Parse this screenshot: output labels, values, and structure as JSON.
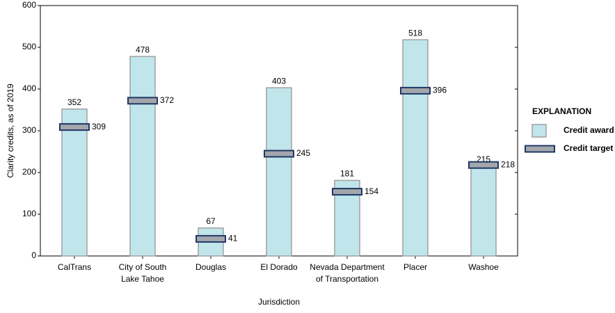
{
  "chart_data": {
    "type": "bar",
    "ylabel": "Clarity credits, as of 2019",
    "xlabel": "Jurisdiction",
    "categories": [
      [
        "CalTrans"
      ],
      [
        "City of South",
        "Lake Tahoe"
      ],
      [
        "Douglas"
      ],
      [
        "El Dorado"
      ],
      [
        "Nevada Department",
        "of Transportation"
      ],
      [
        "Placer"
      ],
      [
        "Washoe"
      ]
    ],
    "series": [
      {
        "name": "Credit award",
        "type": "bar",
        "color": "#c0e6ec",
        "values": [
          352,
          478,
          67,
          403,
          181,
          518,
          215
        ]
      },
      {
        "name": "Credit target",
        "type": "marker",
        "color": "#a3a6ab",
        "values": [
          309,
          372,
          41,
          245,
          154,
          396,
          218
        ]
      }
    ],
    "legend_title": "EXPLANATION",
    "ylim": [
      0,
      600
    ],
    "yticks": [
      0,
      100,
      200,
      300,
      400,
      500,
      600
    ]
  }
}
